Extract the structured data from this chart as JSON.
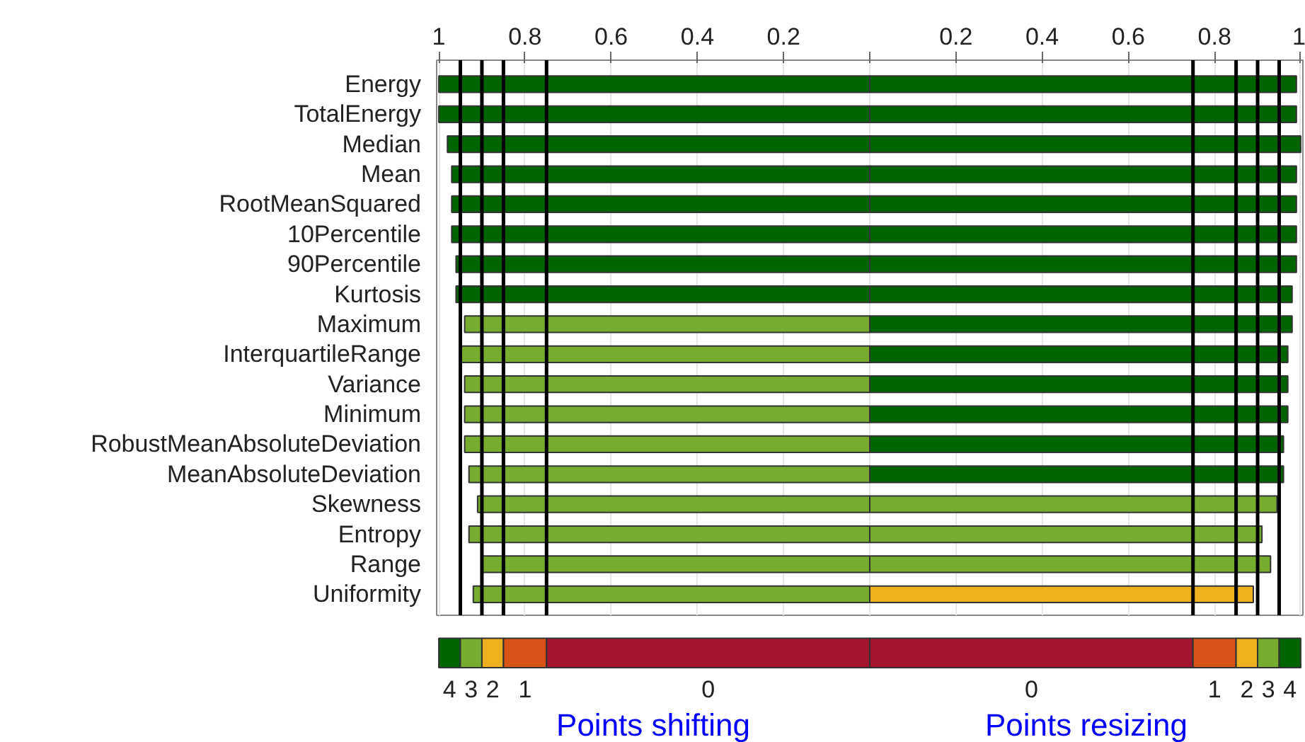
{
  "chart_data": [
    {
      "type": "bar",
      "orientation": "horizontal",
      "grid": "x",
      "stacked": true,
      "categories": [
        "Energy",
        "TotalEnergy",
        "Median",
        "Mean",
        "RootMeanSquared",
        "10Percentile",
        "90Percentile",
        "Kurtosis",
        "Maximum",
        "InterquartileRange",
        "Variance",
        "Minimum",
        "RobustMeanAbsoluteDeviation",
        "MeanAbsoluteDeviation",
        "Skewness",
        "Entropy",
        "Range",
        "Uniformity"
      ],
      "series": [
        {
          "values": [
            -1.0,
            -1.0,
            -0.98,
            -0.97,
            -0.97,
            -0.97,
            -0.96,
            -0.96,
            -0.94,
            -0.95,
            -0.94,
            -0.94,
            -0.94,
            -0.93,
            -0.91,
            -0.93,
            -0.9,
            -0.92
          ],
          "colors": [
            "#006400",
            "#006400",
            "#006400",
            "#006400",
            "#006400",
            "#006400",
            "#006400",
            "#006400",
            "#77ac30",
            "#77ac30",
            "#77ac30",
            "#77ac30",
            "#77ac30",
            "#77ac30",
            "#77ac30",
            "#77ac30",
            "#77ac30",
            "#77ac30"
          ]
        },
        {
          "values": [
            0.99,
            0.99,
            1.0,
            0.99,
            0.99,
            0.99,
            0.99,
            0.98,
            0.98,
            0.97,
            0.97,
            0.97,
            0.96,
            0.96,
            0.945,
            0.91,
            0.93,
            0.89
          ],
          "colors": [
            "#006400",
            "#006400",
            "#006400",
            "#006400",
            "#006400",
            "#006400",
            "#006400",
            "#006400",
            "#006400",
            "#006400",
            "#006400",
            "#006400",
            "#006400",
            "#006400",
            "#77ac30",
            "#77ac30",
            "#77ac30",
            "#edb120"
          ]
        }
      ],
      "xlim": [
        -1.005,
        1.005
      ],
      "xticks": [
        {
          "value": -1,
          "label": "1"
        },
        {
          "value": -0.8,
          "label": "0.8"
        },
        {
          "value": -0.6,
          "label": "0.6"
        },
        {
          "value": -0.4,
          "label": "0.4"
        },
        {
          "value": -0.2,
          "label": "0.2"
        },
        {
          "value": 0,
          "label": null
        },
        0.2,
        0.4,
        0.6,
        0.8,
        1
      ],
      "ref_lines": [
        {
          "axis": "x",
          "value": -0.95,
          "color": "#000000"
        },
        {
          "axis": "x",
          "value": -0.9,
          "color": "#000000"
        },
        {
          "axis": "x",
          "value": -0.85,
          "color": "#000000"
        },
        {
          "axis": "x",
          "value": -0.75,
          "color": "#000000"
        },
        {
          "axis": "x",
          "value": 0.75,
          "color": "#000000"
        },
        {
          "axis": "x",
          "value": 0.85,
          "color": "#000000"
        },
        {
          "axis": "x",
          "value": 0.9,
          "color": "#000000"
        },
        {
          "axis": "x",
          "value": 0.95,
          "color": "#000000"
        }
      ]
    },
    {
      "type": "bar",
      "orientation": "horizontal",
      "categories": [
        null
      ],
      "tick_labels": false,
      "series": [
        {
          "name": "4",
          "color": "#006400",
          "values": [
            0.05
          ],
          "base": [
            -1
          ]
        },
        {
          "name": "3",
          "color": "#77ac30",
          "values": [
            0.05
          ],
          "base": [
            -0.95
          ]
        },
        {
          "name": "2",
          "color": "#edb120",
          "values": [
            0.05
          ],
          "base": [
            -0.9
          ]
        },
        {
          "name": "1",
          "color": "#d95319",
          "values": [
            0.1
          ],
          "base": [
            -0.85
          ]
        },
        {
          "name": "0",
          "color": "#a2142f",
          "values": [
            0.75
          ],
          "base": [
            -0.75
          ]
        },
        {
          "name": "0",
          "color": "#a2142f",
          "values": [
            0.75
          ],
          "base": [
            0
          ]
        },
        {
          "name": "1",
          "color": "#d95319",
          "values": [
            0.1
          ],
          "base": [
            0.75
          ]
        },
        {
          "name": "2",
          "color": "#edb120",
          "values": [
            0.05
          ],
          "base": [
            0.85
          ]
        },
        {
          "name": "3",
          "color": "#77ac30",
          "values": [
            0.05
          ],
          "base": [
            0.9
          ]
        },
        {
          "name": "4",
          "color": "#006400",
          "values": [
            0.05
          ],
          "base": [
            0.95
          ]
        }
      ],
      "xlim": [
        -1.005,
        1.005
      ],
      "xticks": [
        -1,
        -0.8,
        -0.6,
        -0.4,
        -0.2,
        0.2,
        0.4,
        0.6,
        0.8,
        1
      ],
      "annotations": [
        "Points shifting",
        "Points resizing"
      ]
    }
  ]
}
